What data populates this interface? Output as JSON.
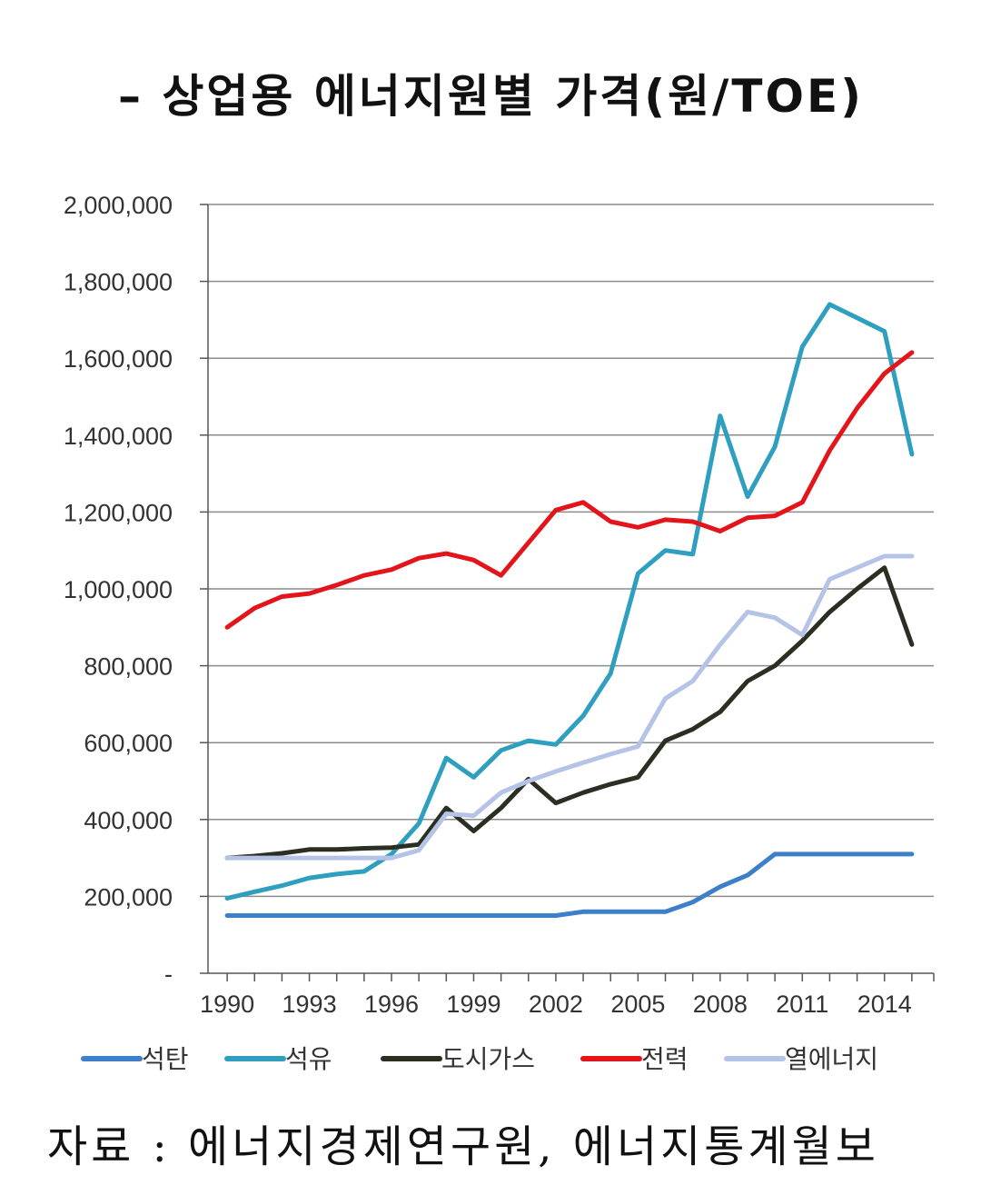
{
  "title": "– 상업용 에너지원별 가격(원/TOE)",
  "source": "자료 : 에너지경제연구원, 에너지통계월보",
  "chart_data": {
    "type": "line",
    "title": "– 상업용 에너지원별 가격(원/TOE)",
    "xlabel": "",
    "ylabel": "",
    "x": [
      1990,
      1991,
      1992,
      1993,
      1994,
      1995,
      1996,
      1997,
      1998,
      1999,
      2000,
      2001,
      2002,
      2003,
      2004,
      2005,
      2006,
      2007,
      2008,
      2009,
      2010,
      2011,
      2012,
      2013,
      2014,
      2015
    ],
    "x_tick_labels": [
      "1990",
      "1993",
      "1996",
      "1999",
      "2002",
      "2005",
      "2008",
      "2011",
      "2014"
    ],
    "x_tick_values": [
      1990,
      1993,
      1996,
      1999,
      2002,
      2005,
      2008,
      2011,
      2014
    ],
    "ylim": [
      0,
      2000000
    ],
    "y_tick_values": [
      0,
      200000,
      400000,
      600000,
      800000,
      1000000,
      1200000,
      1400000,
      1600000,
      1800000,
      2000000
    ],
    "y_tick_labels": [
      "-",
      "200,000",
      "400,000",
      "600,000",
      "800,000",
      "1,000,000",
      "1,200,000",
      "1,400,000",
      "1,600,000",
      "1,800,000",
      "2,000,000"
    ],
    "grid": "horizontal",
    "legend_position": "bottom",
    "series": [
      {
        "name": "석탄",
        "color": "#3d7fc8",
        "values": [
          150000,
          150000,
          150000,
          150000,
          150000,
          150000,
          150000,
          150000,
          150000,
          150000,
          150000,
          150000,
          150000,
          160000,
          160000,
          160000,
          160000,
          185000,
          225000,
          255000,
          310000,
          310000,
          310000,
          310000,
          310000,
          310000
        ]
      },
      {
        "name": "석유",
        "color": "#2e9fbf",
        "values": [
          195000,
          212000,
          228000,
          248000,
          258000,
          265000,
          310000,
          390000,
          560000,
          510000,
          580000,
          605000,
          595000,
          670000,
          780000,
          1040000,
          1100000,
          1090000,
          1450000,
          1240000,
          1370000,
          1630000,
          1740000,
          1705000,
          1670000,
          1350000
        ]
      },
      {
        "name": "도시가스",
        "color": "#2b2f22",
        "values": [
          300000,
          305000,
          312000,
          322000,
          322000,
          325000,
          327000,
          335000,
          430000,
          370000,
          430000,
          505000,
          443000,
          470000,
          492000,
          510000,
          605000,
          635000,
          680000,
          760000,
          800000,
          865000,
          940000,
          1000000,
          1055000,
          855000
        ]
      },
      {
        "name": "전력",
        "color": "#e4141b",
        "values": [
          900000,
          950000,
          980000,
          988000,
          1010000,
          1035000,
          1050000,
          1080000,
          1092000,
          1075000,
          1035000,
          1120000,
          1205000,
          1225000,
          1175000,
          1160000,
          1180000,
          1175000,
          1150000,
          1185000,
          1190000,
          1225000,
          1360000,
          1470000,
          1560000,
          1615000
        ]
      },
      {
        "name": "열에너지",
        "color": "#b4c3e6",
        "values": [
          300000,
          300000,
          300000,
          300000,
          300000,
          300000,
          300000,
          320000,
          415000,
          410000,
          470000,
          500000,
          525000,
          548000,
          570000,
          590000,
          715000,
          760000,
          855000,
          940000,
          925000,
          880000,
          1025000,
          1055000,
          1085000,
          1085000
        ]
      }
    ]
  }
}
